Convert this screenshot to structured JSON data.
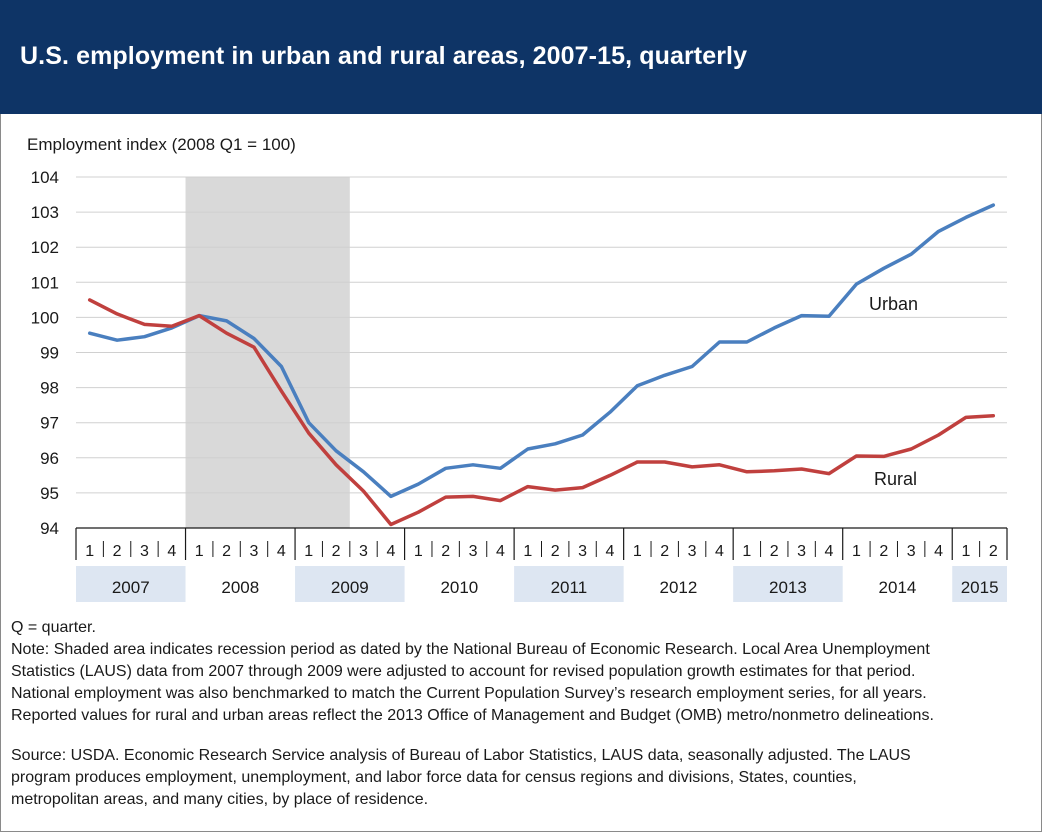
{
  "header": {
    "title": "U.S. employment in urban and rural areas, 2007-15, quarterly"
  },
  "colors": {
    "header_bg": "#0e3466",
    "urban": "#4a7fbf",
    "rural": "#c0403e",
    "recession": "#d9d9d9",
    "year_band": "#dde6f2"
  },
  "chart_data": {
    "type": "line",
    "title": "U.S. employment in urban and rural areas, 2007-15, quarterly",
    "ylabel": "Employment index (2008 Q1 = 100)",
    "ylim": [
      94,
      104
    ],
    "yticks": [
      "94",
      "95",
      "96",
      "97",
      "98",
      "99",
      "100",
      "101",
      "102",
      "103",
      "104"
    ],
    "grid": true,
    "quarter_labels": [
      "1",
      "2",
      "3",
      "4",
      "1",
      "2",
      "3",
      "4",
      "1",
      "2",
      "3",
      "4",
      "1",
      "2",
      "3",
      "4",
      "1",
      "2",
      "3",
      "4",
      "1",
      "2",
      "3",
      "4",
      "1",
      "2",
      "3",
      "4",
      "1",
      "2",
      "3",
      "4",
      "1",
      "2"
    ],
    "years": [
      {
        "label": "2007",
        "quarters": 4,
        "shaded": true
      },
      {
        "label": "2008",
        "quarters": 4,
        "shaded": false
      },
      {
        "label": "2009",
        "quarters": 4,
        "shaded": true
      },
      {
        "label": "2010",
        "quarters": 4,
        "shaded": false
      },
      {
        "label": "2011",
        "quarters": 4,
        "shaded": true
      },
      {
        "label": "2012",
        "quarters": 4,
        "shaded": false
      },
      {
        "label": "2013",
        "quarters": 4,
        "shaded": true
      },
      {
        "label": "2014",
        "quarters": 4,
        "shaded": false
      },
      {
        "label": "2015",
        "quarters": 2,
        "shaded": true
      }
    ],
    "recession": {
      "start_quarter": "2008 Q1",
      "end_quarter": "2009 Q2"
    },
    "series": [
      {
        "name": "Urban",
        "values": [
          99.55,
          99.35,
          99.45,
          99.7,
          100.05,
          99.9,
          99.4,
          98.6,
          97.0,
          96.2,
          95.6,
          94.9,
          95.25,
          95.7,
          95.8,
          95.7,
          96.25,
          96.4,
          96.65,
          97.3,
          98.05,
          98.35,
          98.6,
          99.3,
          99.3,
          99.7,
          100.05,
          100.03,
          100.95,
          101.4,
          101.8,
          102.45,
          102.85,
          103.2
        ]
      },
      {
        "name": "Rural",
        "values": [
          100.5,
          100.1,
          99.8,
          99.75,
          100.05,
          99.55,
          99.15,
          97.9,
          96.7,
          95.8,
          95.05,
          94.1,
          94.45,
          94.88,
          94.9,
          94.78,
          95.18,
          95.08,
          95.15,
          95.5,
          95.88,
          95.88,
          95.74,
          95.8,
          95.6,
          95.63,
          95.68,
          95.55,
          96.05,
          96.04,
          96.25,
          96.65,
          97.15,
          97.2
        ]
      }
    ]
  },
  "notes": {
    "q_def": "Q = quarter.",
    "note_lines": [
      "Note: Shaded area indicates recession period as dated by the National Bureau of Economic Research. Local Area Unemployment",
      "Statistics (LAUS) data from 2007 through 2009 were adjusted to account for revised population growth estimates for that period.",
      "National employment was also benchmarked to match the Current Population Survey’s research employment series, for all years.",
      "Reported values for rural and urban areas reflect the 2013 Office of Management and Budget (OMB) metro/nonmetro delineations."
    ],
    "source_lines": [
      "Source: USDA. Economic Research Service analysis of Bureau of Labor Statistics, LAUS data, seasonally adjusted. The LAUS",
      "program produces employment, unemployment, and labor force data for census regions and divisions, States, counties,",
      "metropolitan areas, and many cities, by place of residence."
    ]
  }
}
